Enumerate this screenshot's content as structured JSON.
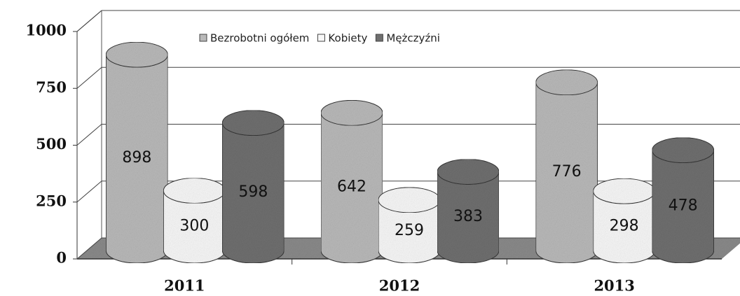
{
  "chart_data": {
    "type": "bar3d",
    "categories": [
      "2011",
      "2012",
      "2013"
    ],
    "series": [
      {
        "name": "Bezrobotni ogółem",
        "color": "#b9b9b9",
        "values": [
          898,
          642,
          776
        ]
      },
      {
        "name": "Kobiety",
        "color": "#f7f7f7",
        "values": [
          300,
          259,
          298
        ]
      },
      {
        "name": "Mężczyźni",
        "color": "#6f6f6f",
        "values": [
          598,
          383,
          478
        ]
      }
    ],
    "ylim": [
      0,
      1000
    ],
    "yticks": [
      0,
      250,
      500,
      750,
      1000
    ],
    "grid": true,
    "legend": "top"
  }
}
